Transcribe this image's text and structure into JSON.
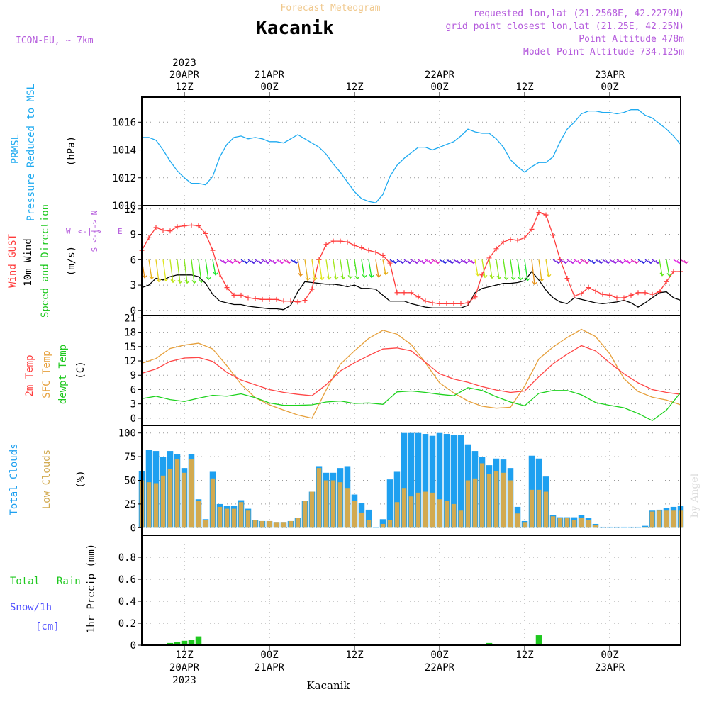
{
  "header": {
    "product": "Forecast Meteogram",
    "station": "Kacanik",
    "model": "ICON-EU, ~ 7km",
    "requested": "requested lon,lat (21.2568E, 42.2279N)",
    "grid": "grid point closest lon,lat (21.25E, 42.25N)",
    "point_alt": "Point Altitude 478m",
    "model_alt": "Model Point Altitude 734.125m",
    "footer_name": "Kacanik",
    "credit": "by Angel"
  },
  "colors": {
    "pressure": "#1eaaf0",
    "gust": "#ff3c3c",
    "wind": "#000000",
    "t2m": "#ff4646",
    "sfc": "#e6a03c",
    "dewpt": "#1ed21e",
    "total_clouds": "#1ea0f0",
    "low_clouds": "#d2aa50",
    "rain": "#1ec81e",
    "snow": "#5050ff",
    "header_purple": "#b45adc",
    "header_orange": "#f0c88c"
  },
  "time_axis": {
    "top_labels": [
      {
        "t": 12,
        "lines": [
          "2023",
          "20APR",
          "12Z"
        ]
      },
      {
        "t": 24,
        "lines": [
          "21APR",
          "00Z"
        ]
      },
      {
        "t": 36,
        "lines": [
          "12Z"
        ]
      },
      {
        "t": 48,
        "lines": [
          "22APR",
          "00Z"
        ]
      },
      {
        "t": 60,
        "lines": [
          "12Z"
        ]
      },
      {
        "t": 72,
        "lines": [
          "23APR",
          "00Z"
        ]
      }
    ],
    "bottom_labels": [
      {
        "t": 12,
        "lines": [
          "12Z",
          "20APR",
          "2023"
        ]
      },
      {
        "t": 24,
        "lines": [
          "00Z",
          "21APR"
        ]
      },
      {
        "t": 36,
        "lines": [
          "12Z"
        ]
      },
      {
        "t": 48,
        "lines": [
          "00Z",
          "22APR"
        ]
      },
      {
        "t": 60,
        "lines": [
          "12Z"
        ]
      },
      {
        "t": 72,
        "lines": [
          "00Z",
          "23APR"
        ]
      }
    ],
    "start_hour": 6,
    "end_hour": 82
  },
  "panel_labels": {
    "pressure": [
      "PRMSL",
      "Pressure Reduced to MSL",
      "(hPa)"
    ],
    "wind": [
      "Wind GUST",
      "10m Wind",
      "Speed and Direction",
      "(m/s)"
    ],
    "compass": {
      "n": "N",
      "s": "S",
      "w": "W",
      "e": "E",
      "mid": "<-|->"
    },
    "temp": [
      "2m Temp",
      "SFC Temp",
      "dewpt Temp",
      "(C)"
    ],
    "clouds": [
      "Total Clouds",
      "Low Clouds",
      "(%)"
    ],
    "precip": [
      "Total",
      "Rain",
      "Snow/1h",
      "[cm]",
      "1hr Precip (mm)"
    ]
  },
  "chart_data": [
    {
      "type": "line",
      "title": "PRMSL Pressure Reduced to MSL",
      "ylabel": "(hPa)",
      "ylim": [
        1010,
        1017.8
      ],
      "yticks": [
        1010,
        1012,
        1014,
        1016
      ],
      "series": [
        {
          "name": "PRMSL",
          "x": [
            6,
            7,
            8,
            9,
            10,
            11,
            12,
            13,
            14,
            15,
            16,
            17,
            18,
            19,
            20,
            21,
            22,
            23,
            24,
            25,
            26,
            27,
            28,
            29,
            30,
            31,
            32,
            33,
            34,
            35,
            36,
            37,
            38,
            39,
            40,
            41,
            42,
            43,
            44,
            45,
            46,
            47,
            48,
            49,
            50,
            51,
            52,
            53,
            54,
            55,
            56,
            57,
            58,
            59,
            60,
            61,
            62,
            63,
            64,
            65,
            66,
            67,
            68,
            69,
            70,
            71,
            72,
            73,
            74,
            75,
            76,
            77,
            78,
            79,
            80,
            81,
            82
          ],
          "y": [
            1014.9,
            1014.9,
            1014.7,
            1014.0,
            1013.2,
            1012.5,
            1012.0,
            1011.6,
            1011.6,
            1011.5,
            1012.1,
            1013.5,
            1014.4,
            1014.9,
            1015.0,
            1014.8,
            1014.9,
            1014.8,
            1014.6,
            1014.6,
            1014.5,
            1014.8,
            1015.1,
            1014.8,
            1014.5,
            1014.2,
            1013.7,
            1013.0,
            1012.4,
            1011.7,
            1011.0,
            1010.5,
            1010.3,
            1010.2,
            1010.8,
            1012.1,
            1012.9,
            1013.4,
            1013.8,
            1014.2,
            1014.2,
            1014.0,
            1014.2,
            1014.4,
            1014.6,
            1015.0,
            1015.5,
            1015.3,
            1015.2,
            1015.2,
            1014.8,
            1014.2,
            1013.3,
            1012.8,
            1012.4,
            1012.8,
            1013.1,
            1013.1,
            1013.5,
            1014.6,
            1015.5,
            1016.0,
            1016.6,
            1016.8,
            1016.8,
            1016.7,
            1016.7,
            1016.6,
            1016.7,
            1016.9,
            1016.9,
            1016.5,
            1016.3,
            1015.9,
            1015.5,
            1015.0,
            1014.4
          ]
        }
      ]
    },
    {
      "type": "line",
      "title": "Wind GUST / 10m Wind Speed and Direction",
      "ylabel": "(m/s)",
      "ylim": [
        -0.6,
        12.4
      ],
      "yticks": [
        0,
        3,
        6,
        9,
        12
      ],
      "series": [
        {
          "name": "Wind GUST",
          "x": [
            6,
            7,
            8,
            9,
            10,
            11,
            12,
            13,
            14,
            15,
            16,
            17,
            18,
            19,
            20,
            21,
            22,
            23,
            24,
            25,
            26,
            27,
            28,
            29,
            30,
            31,
            32,
            33,
            34,
            35,
            36,
            37,
            38,
            39,
            40,
            41,
            42,
            43,
            44,
            45,
            46,
            47,
            48,
            49,
            50,
            51,
            52,
            53,
            54,
            55,
            56,
            57,
            58,
            59,
            60,
            61,
            62,
            63,
            64,
            65,
            66,
            67,
            68,
            69,
            70,
            71,
            72,
            73,
            74,
            75,
            76,
            77,
            78,
            79,
            80,
            81,
            82
          ],
          "y": [
            7.1,
            8.6,
            9.8,
            9.5,
            9.4,
            9.9,
            10.0,
            10.1,
            10.0,
            9.1,
            7.1,
            4.3,
            2.7,
            1.8,
            1.8,
            1.5,
            1.4,
            1.3,
            1.3,
            1.3,
            1.1,
            1.1,
            1.0,
            1.2,
            2.5,
            6.0,
            7.8,
            8.2,
            8.2,
            8.1,
            7.7,
            7.4,
            7.1,
            6.9,
            6.5,
            5.6,
            2.1,
            2.1,
            2.1,
            1.6,
            1.1,
            0.9,
            0.8,
            0.8,
            0.8,
            0.8,
            0.9,
            1.6,
            4.2,
            6.2,
            7.3,
            8.1,
            8.4,
            8.3,
            8.6,
            9.6,
            11.6,
            11.3,
            8.9,
            6.0,
            3.8,
            1.7,
            2.0,
            2.7,
            2.3,
            1.9,
            1.8,
            1.5,
            1.5,
            1.8,
            2.1,
            2.1,
            1.9,
            2.2,
            3.4,
            4.6,
            4.6
          ]
        },
        {
          "name": "10m Wind",
          "x": [
            6,
            7,
            8,
            9,
            10,
            11,
            12,
            13,
            14,
            15,
            16,
            17,
            18,
            19,
            20,
            21,
            22,
            23,
            24,
            25,
            26,
            27,
            28,
            29,
            30,
            31,
            32,
            33,
            34,
            35,
            36,
            37,
            38,
            39,
            40,
            41,
            42,
            43,
            44,
            45,
            46,
            47,
            48,
            49,
            50,
            51,
            52,
            53,
            54,
            55,
            56,
            57,
            58,
            59,
            60,
            61,
            62,
            63,
            64,
            65,
            66,
            67,
            68,
            69,
            70,
            71,
            72,
            73,
            74,
            75,
            76,
            77,
            78,
            79,
            80,
            81,
            82
          ],
          "y": [
            2.7,
            3.0,
            3.8,
            3.6,
            4.0,
            4.2,
            4.2,
            4.2,
            4.0,
            3.2,
            1.9,
            1.1,
            0.9,
            0.7,
            0.7,
            0.5,
            0.4,
            0.3,
            0.2,
            0.2,
            0.1,
            0.6,
            2.2,
            3.4,
            3.3,
            3.2,
            3.1,
            3.1,
            3.0,
            2.8,
            3.0,
            2.6,
            2.6,
            2.5,
            1.8,
            1.1,
            1.1,
            1.1,
            0.8,
            0.6,
            0.4,
            0.3,
            0.3,
            0.3,
            0.3,
            0.3,
            0.6,
            2.1,
            2.6,
            2.8,
            3.0,
            3.2,
            3.2,
            3.3,
            3.5,
            4.6,
            3.6,
            2.4,
            1.5,
            1.0,
            0.8,
            1.5,
            1.3,
            1.1,
            0.9,
            0.8,
            0.9,
            1.0,
            1.2,
            0.9,
            0.4,
            0.9,
            1.5,
            2.1,
            2.2,
            1.5,
            1.2
          ]
        }
      ]
    },
    {
      "type": "line",
      "title": "2m Temp / SFC Temp / dewpt Temp",
      "ylabel": "(C)",
      "ylim": [
        -1.5,
        21.5
      ],
      "yticks": [
        0,
        3,
        6,
        9,
        12,
        15,
        18,
        21
      ],
      "series": [
        {
          "name": "2m Temp",
          "x": [
            6,
            8,
            10,
            12,
            14,
            16,
            18,
            20,
            22,
            24,
            26,
            28,
            30,
            32,
            34,
            36,
            38,
            40,
            42,
            44,
            46,
            48,
            50,
            52,
            54,
            56,
            58,
            60,
            62,
            64,
            66,
            68,
            70,
            72,
            74,
            76,
            78,
            80,
            82
          ],
          "y": [
            9.4,
            10.3,
            11.9,
            12.6,
            12.7,
            11.9,
            9.6,
            8.0,
            7.0,
            6.0,
            5.4,
            5.0,
            4.7,
            7.0,
            9.9,
            11.6,
            13.1,
            14.5,
            14.7,
            14.1,
            11.7,
            9.3,
            8.2,
            7.5,
            6.6,
            5.9,
            5.4,
            5.7,
            8.7,
            11.4,
            13.4,
            15.2,
            14.1,
            11.6,
            9.3,
            7.4,
            6.0,
            5.4,
            5.0
          ]
        },
        {
          "name": "SFC Temp",
          "x": [
            6,
            8,
            10,
            12,
            14,
            16,
            18,
            20,
            22,
            24,
            26,
            28,
            30,
            32,
            34,
            36,
            38,
            40,
            42,
            44,
            46,
            48,
            50,
            52,
            54,
            56,
            58,
            60,
            62,
            64,
            66,
            68,
            70,
            72,
            74,
            76,
            78,
            80,
            82
          ],
          "y": [
            11.5,
            12.5,
            14.6,
            15.3,
            15.7,
            14.5,
            11.0,
            7.1,
            4.3,
            2.8,
            1.7,
            0.7,
            0.0,
            5.9,
            11.3,
            14.1,
            16.7,
            18.4,
            17.6,
            15.4,
            11.6,
            7.4,
            5.3,
            3.6,
            2.5,
            2.1,
            2.3,
            6.7,
            12.4,
            14.9,
            16.9,
            18.6,
            17.1,
            13.5,
            8.3,
            5.6,
            4.4,
            3.8,
            2.8
          ]
        },
        {
          "name": "dewpt Temp",
          "x": [
            6,
            8,
            10,
            12,
            14,
            16,
            18,
            20,
            22,
            24,
            26,
            28,
            30,
            32,
            34,
            36,
            38,
            40,
            42,
            44,
            46,
            48,
            50,
            52,
            54,
            56,
            58,
            60,
            62,
            64,
            66,
            68,
            70,
            72,
            74,
            76,
            78,
            80,
            82
          ],
          "y": [
            4.1,
            4.6,
            3.9,
            3.5,
            4.2,
            4.8,
            4.6,
            5.1,
            4.3,
            3.2,
            2.7,
            2.7,
            2.8,
            3.4,
            3.6,
            3.1,
            3.2,
            2.9,
            5.5,
            5.7,
            5.4,
            5.0,
            4.7,
            6.4,
            5.8,
            4.5,
            3.4,
            2.6,
            5.2,
            5.8,
            5.8,
            4.9,
            3.3,
            2.7,
            2.2,
            1.0,
            -0.5,
            1.7,
            5.4
          ]
        }
      ]
    },
    {
      "type": "bar",
      "title": "Total Clouds / Low Clouds",
      "ylabel": "(%)",
      "ylim": [
        -8,
        108
      ],
      "yticks": [
        0,
        25,
        50,
        75,
        100
      ],
      "x_start": 6,
      "series": [
        {
          "name": "Total Clouds",
          "values": [
            60,
            82,
            81,
            75,
            81,
            78,
            63,
            78,
            30,
            9,
            59,
            25,
            23,
            23,
            29,
            20,
            8,
            7,
            7,
            6,
            6,
            7,
            10,
            28,
            38,
            65,
            58,
            58,
            63,
            65,
            35,
            26,
            19,
            0,
            9,
            51,
            59,
            100,
            100,
            100,
            99,
            97,
            100,
            99,
            98,
            98,
            88,
            81,
            75,
            66,
            73,
            72,
            63,
            22,
            7,
            76,
            73,
            54,
            13,
            11,
            11,
            11,
            13,
            10,
            4,
            1,
            1,
            1,
            1,
            1,
            1,
            2,
            18,
            19,
            21,
            22,
            23
          ]
        },
        {
          "name": "Low Clouds",
          "values": [
            50,
            48,
            47,
            55,
            62,
            72,
            58,
            72,
            28,
            8,
            52,
            22,
            20,
            20,
            27,
            18,
            8,
            7,
            7,
            6,
            6,
            7,
            10,
            28,
            38,
            63,
            50,
            50,
            48,
            42,
            28,
            16,
            8,
            0,
            4,
            8,
            27,
            42,
            33,
            37,
            38,
            37,
            30,
            28,
            25,
            18,
            50,
            52,
            68,
            57,
            60,
            58,
            50,
            15,
            6,
            40,
            40,
            38,
            12,
            10,
            10,
            8,
            10,
            8,
            3,
            0,
            0,
            0,
            0,
            0,
            0,
            1,
            17,
            18,
            18,
            18,
            18
          ]
        }
      ]
    },
    {
      "type": "bar",
      "title": "Total Rain / Snow 1hr Precip",
      "ylabel": "1hr Precip (mm)",
      "ylim": [
        0,
        1.0
      ],
      "yticks": [
        0,
        0.2,
        0.4,
        0.6,
        0.8
      ],
      "series": [
        {
          "name": "Total Rain",
          "x": [
            10,
            11,
            12,
            13,
            14,
            55,
            56,
            62
          ],
          "values": [
            0.02,
            0.03,
            0.04,
            0.05,
            0.08,
            0.02,
            0.01,
            0.09
          ]
        }
      ]
    }
  ]
}
